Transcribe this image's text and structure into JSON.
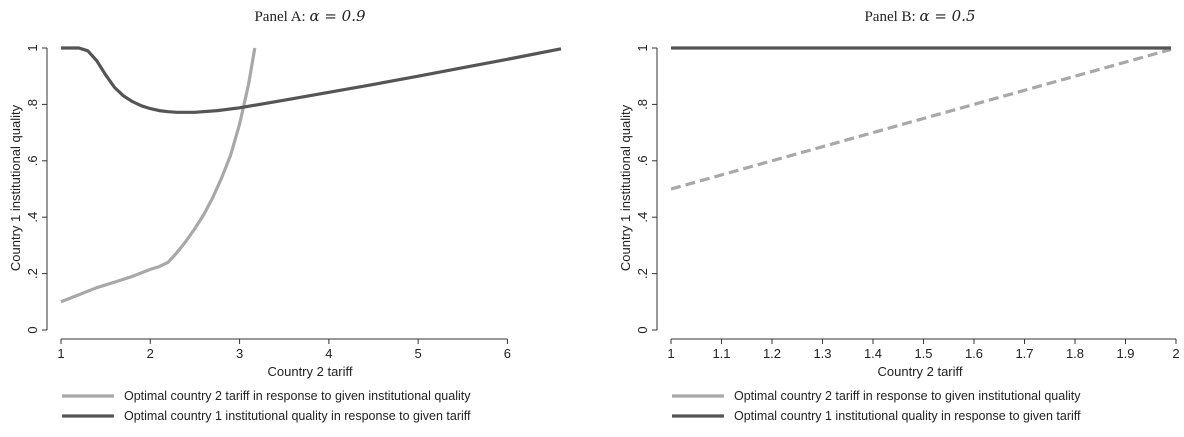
{
  "chart_data": [
    {
      "type": "line",
      "title_prefix": "Panel A: ",
      "title_math": "α = 0.9",
      "xlabel": "Country 2 tariff",
      "ylabel": "Country 1 institutional quality",
      "xlim": [
        1,
        6.6
      ],
      "ylim": [
        0,
        1
      ],
      "xticks": [
        1,
        2,
        3,
        4,
        5,
        6
      ],
      "xtick_labels": [
        "1",
        "2",
        "3",
        "4",
        "5",
        "6"
      ],
      "yticks": [
        0,
        0.2,
        0.4,
        0.6,
        0.8,
        1
      ],
      "ytick_labels": [
        "0",
        ".2",
        ".4",
        ".6",
        ".8",
        "1"
      ],
      "grid": false,
      "legend_position": "bottom",
      "series": [
        {
          "name": "Optimal country 2 tariff in response to given institutional quality",
          "color": "#a8a8a8",
          "style": "solid",
          "x": [
            1.0,
            1.2,
            1.4,
            1.6,
            1.8,
            2.0,
            2.1,
            2.2,
            2.3,
            2.4,
            2.5,
            2.6,
            2.7,
            2.8,
            2.9,
            3.0,
            3.1,
            3.17
          ],
          "y": [
            0.1,
            0.125,
            0.15,
            0.17,
            0.19,
            0.215,
            0.225,
            0.24,
            0.275,
            0.315,
            0.36,
            0.41,
            0.47,
            0.54,
            0.62,
            0.73,
            0.87,
            1.0
          ]
        },
        {
          "name": "Optimal country 1 institutional quality in response to given tariff",
          "color": "#555555",
          "style": "solid",
          "x": [
            1.0,
            1.1,
            1.2,
            1.3,
            1.4,
            1.5,
            1.6,
            1.7,
            1.8,
            1.9,
            2.0,
            2.1,
            2.2,
            2.3,
            2.5,
            2.75,
            3.0,
            3.5,
            4.0,
            4.5,
            5.0,
            5.5,
            6.0,
            6.6
          ],
          "y": [
            1.0,
            1.0,
            1.0,
            0.99,
            0.955,
            0.905,
            0.86,
            0.83,
            0.81,
            0.795,
            0.785,
            0.778,
            0.774,
            0.772,
            0.772,
            0.778,
            0.788,
            0.815,
            0.843,
            0.871,
            0.9,
            0.93,
            0.96,
            0.997
          ]
        }
      ]
    },
    {
      "type": "line",
      "title_prefix": "Panel B: ",
      "title_math": "α = 0.5",
      "xlabel": "Country 2 tariff",
      "ylabel": "Country 1 institutional quality",
      "xlim": [
        1,
        2
      ],
      "ylim": [
        0,
        1
      ],
      "xticks": [
        1,
        1.1,
        1.2,
        1.3,
        1.4,
        1.5,
        1.6,
        1.7,
        1.8,
        1.9,
        2
      ],
      "xtick_labels": [
        "1",
        "1.1",
        "1.2",
        "1.3",
        "1.4",
        "1.5",
        "1.6",
        "1.7",
        "1.8",
        "1.9",
        "2"
      ],
      "yticks": [
        0,
        0.2,
        0.4,
        0.6,
        0.8,
        1
      ],
      "ytick_labels": [
        "0",
        ".2",
        ".4",
        ".6",
        ".8",
        "1"
      ],
      "grid": false,
      "legend_position": "bottom",
      "series": [
        {
          "name": "Optimal country 2 tariff in response to given institutional quality",
          "color": "#a8a8a8",
          "style": "dashed",
          "x": [
            1.0,
            1.99
          ],
          "y": [
            0.5,
            0.995
          ]
        },
        {
          "name": "Optimal country 1 institutional quality in response to given tariff",
          "color": "#555555",
          "style": "solid",
          "x": [
            1.0,
            1.99
          ],
          "y": [
            1.0,
            1.0
          ]
        }
      ]
    }
  ]
}
